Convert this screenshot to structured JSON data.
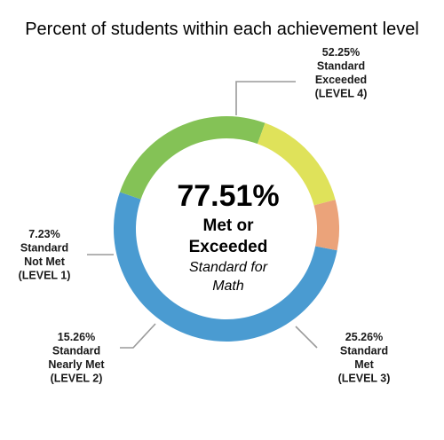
{
  "chart_data": {
    "type": "pie",
    "title": "Percent of students within each achievement level",
    "donut": true,
    "center_text": {
      "value": "77.51%",
      "line1": "Met or",
      "line2": "Exceeded",
      "line3": "Standard for",
      "line4": "Math"
    },
    "slices": [
      {
        "value": 52.25,
        "label_lines": [
          "52.25%",
          "Standard",
          "Exceeded",
          "(LEVEL 4)"
        ],
        "color": "#4a9bd1"
      },
      {
        "value": 25.26,
        "label_lines": [
          "25.26%",
          "Standard",
          "Met",
          "(LEVEL 3)"
        ],
        "color": "#84c256"
      },
      {
        "value": 15.26,
        "label_lines": [
          "15.26%",
          "Standard",
          "Nearly Met",
          "(LEVEL 2)"
        ],
        "color": "#dfe25a"
      },
      {
        "value": 7.23,
        "label_lines": [
          "7.23%",
          "Standard",
          "Not Met",
          "(LEVEL 1)"
        ],
        "color": "#eba37a"
      }
    ]
  }
}
